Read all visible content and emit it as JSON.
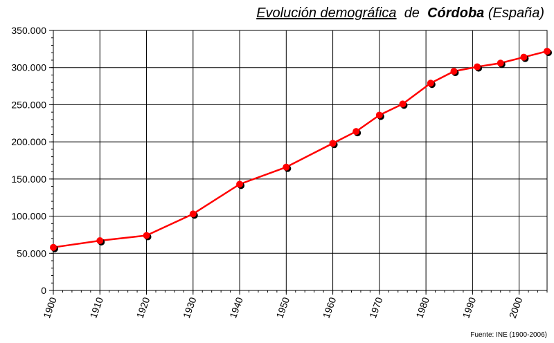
{
  "title": {
    "part1": "Evolución demográfica",
    "part2": "de",
    "part3": "Córdoba",
    "part4": "(España)"
  },
  "source": "Fuente: INE (1900-2006)",
  "chart_data": {
    "type": "line",
    "x": [
      1900,
      1910,
      1920,
      1930,
      1940,
      1950,
      1960,
      1965,
      1970,
      1975,
      1981,
      1986,
      1991,
      1996,
      2001,
      2006
    ],
    "series": [
      {
        "values": [
          58000,
          67000,
          74000,
          103000,
          143000,
          166000,
          198000,
          214000,
          236000,
          251000,
          279000,
          295000,
          301000,
          306000,
          314000,
          322000
        ]
      }
    ],
    "xticks": [
      "1900",
      "1910",
      "1920",
      "1930",
      "1940",
      "1950",
      "1960",
      "1970",
      "1980",
      "1990",
      "2000"
    ],
    "yticks": [
      "0",
      "50.000",
      "100.000",
      "150.000",
      "200.000",
      "250.000",
      "300.000",
      "350.000"
    ],
    "xlim": [
      1900,
      2006
    ],
    "ylim": [
      0,
      350000
    ],
    "grid": true,
    "colors": {
      "line": "#ff0000",
      "marker": "#ff0000",
      "marker_shadow": "#000000",
      "grid": "#000000"
    }
  }
}
